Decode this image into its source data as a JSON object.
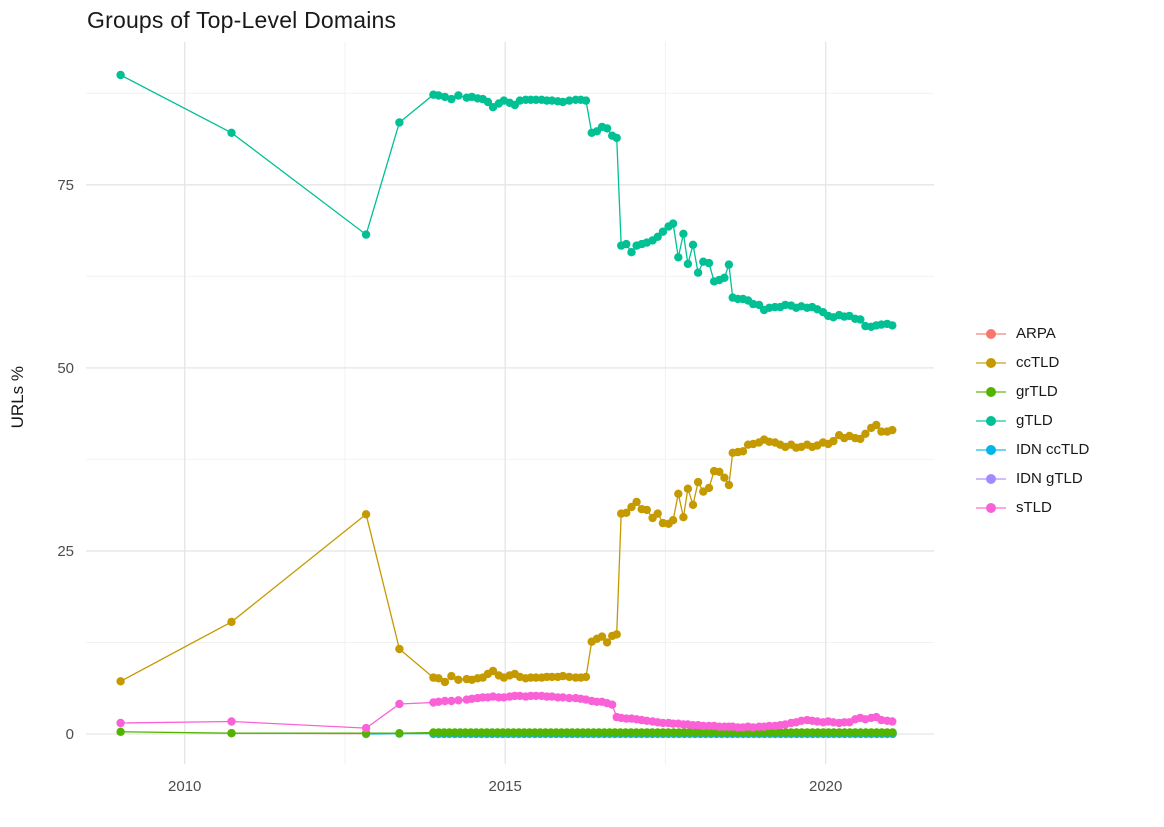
{
  "title": "Groups of Top-Level Domains",
  "colors": {
    "background": "#ffffff",
    "grid_major": "#e5e5e5",
    "grid_minor": "#f2f2f2",
    "tick_text": "#4d4d4d",
    "text": "#191919"
  },
  "chart_data": {
    "type": "line",
    "title": "Groups of Top-Level Domains",
    "xlabel": "",
    "ylabel": "URLs %",
    "xlim": [
      2008.46,
      2021.69
    ],
    "ylim": [
      -4.1,
      94.5
    ],
    "x_major_ticks": [
      2010,
      2015,
      2020
    ],
    "x_minor_gridlines": [
      2012.5,
      2017.5
    ],
    "y_major_ticks": [
      0,
      25,
      50,
      75
    ],
    "y_minor_gridlines": [
      12.5,
      37.5,
      62.5,
      87.5
    ],
    "grid": "major-and-minor",
    "legend_position": "right",
    "marker": "point-with-line",
    "series": [
      {
        "name": "ARPA",
        "color": "#F8766D",
        "points": [
          [
            2010.73,
            0.1
          ],
          [
            2012.83,
            0.05
          ]
        ]
      },
      {
        "name": "ccTLD",
        "color": "#C49A00",
        "points": [
          [
            2009.0,
            7.2
          ],
          [
            2010.73,
            15.3
          ],
          [
            2012.83,
            30.0
          ],
          [
            2013.35,
            11.6
          ],
          [
            2013.88,
            7.7
          ],
          [
            2013.96,
            7.6
          ],
          [
            2014.06,
            7.1
          ],
          [
            2014.16,
            7.9
          ],
          [
            2014.27,
            7.4
          ],
          [
            2014.4,
            7.5
          ],
          [
            2014.48,
            7.4
          ],
          [
            2014.57,
            7.6
          ],
          [
            2014.65,
            7.7
          ],
          [
            2014.73,
            8.2
          ],
          [
            2014.81,
            8.6
          ],
          [
            2014.9,
            8.0
          ],
          [
            2014.98,
            7.7
          ],
          [
            2015.07,
            8.0
          ],
          [
            2015.15,
            8.2
          ],
          [
            2015.23,
            7.8
          ],
          [
            2015.32,
            7.6
          ],
          [
            2015.4,
            7.7
          ],
          [
            2015.48,
            7.7
          ],
          [
            2015.57,
            7.7
          ],
          [
            2015.65,
            7.8
          ],
          [
            2015.73,
            7.8
          ],
          [
            2015.82,
            7.8
          ],
          [
            2015.9,
            7.9
          ],
          [
            2016.0,
            7.8
          ],
          [
            2016.1,
            7.7
          ],
          [
            2016.18,
            7.7
          ],
          [
            2016.26,
            7.8
          ],
          [
            2016.35,
            12.6
          ],
          [
            2016.43,
            13.0
          ],
          [
            2016.51,
            13.3
          ],
          [
            2016.59,
            12.5
          ],
          [
            2016.67,
            13.4
          ],
          [
            2016.74,
            13.6
          ],
          [
            2016.81,
            30.1
          ],
          [
            2016.89,
            30.2
          ],
          [
            2016.97,
            31.0
          ],
          [
            2017.05,
            31.7
          ],
          [
            2017.13,
            30.7
          ],
          [
            2017.21,
            30.6
          ],
          [
            2017.3,
            29.5
          ],
          [
            2017.38,
            30.1
          ],
          [
            2017.46,
            28.8
          ],
          [
            2017.55,
            28.7
          ],
          [
            2017.62,
            29.2
          ],
          [
            2017.7,
            32.8
          ],
          [
            2017.78,
            29.6
          ],
          [
            2017.85,
            33.5
          ],
          [
            2017.93,
            31.3
          ],
          [
            2018.01,
            34.4
          ],
          [
            2018.09,
            33.1
          ],
          [
            2018.18,
            33.6
          ],
          [
            2018.26,
            35.9
          ],
          [
            2018.34,
            35.8
          ],
          [
            2018.42,
            35.0
          ],
          [
            2018.49,
            34.0
          ],
          [
            2018.55,
            38.4
          ],
          [
            2018.63,
            38.5
          ],
          [
            2018.71,
            38.6
          ],
          [
            2018.79,
            39.5
          ],
          [
            2018.87,
            39.6
          ],
          [
            2018.96,
            39.8
          ],
          [
            2019.04,
            40.2
          ],
          [
            2019.12,
            39.9
          ],
          [
            2019.21,
            39.8
          ],
          [
            2019.29,
            39.5
          ],
          [
            2019.37,
            39.2
          ],
          [
            2019.46,
            39.5
          ],
          [
            2019.54,
            39.1
          ],
          [
            2019.62,
            39.2
          ],
          [
            2019.71,
            39.5
          ],
          [
            2019.79,
            39.2
          ],
          [
            2019.87,
            39.4
          ],
          [
            2019.96,
            39.8
          ],
          [
            2020.04,
            39.6
          ],
          [
            2020.12,
            40.0
          ],
          [
            2020.21,
            40.8
          ],
          [
            2020.29,
            40.4
          ],
          [
            2020.37,
            40.7
          ],
          [
            2020.46,
            40.4
          ],
          [
            2020.54,
            40.3
          ],
          [
            2020.62,
            41.0
          ],
          [
            2020.71,
            41.8
          ],
          [
            2020.79,
            42.2
          ],
          [
            2020.87,
            41.3
          ],
          [
            2020.96,
            41.3
          ],
          [
            2021.04,
            41.5
          ]
        ]
      },
      {
        "name": "grTLD",
        "color": "#53B400",
        "points": [
          [
            2009.0,
            0.3
          ],
          [
            2010.73,
            0.1
          ],
          [
            2012.83,
            0.1
          ],
          [
            2013.35,
            0.1
          ]
        ],
        "run": {
          "from": 2013.88,
          "to": 2021.05,
          "step": 0.0833,
          "value": 0.2
        }
      },
      {
        "name": "gTLD",
        "color": "#00C094",
        "points": [
          [
            2009.0,
            90.0
          ],
          [
            2010.73,
            82.1
          ],
          [
            2012.83,
            68.2
          ],
          [
            2013.35,
            83.5
          ],
          [
            2013.88,
            87.3
          ],
          [
            2013.96,
            87.2
          ],
          [
            2014.06,
            87.0
          ],
          [
            2014.16,
            86.7
          ],
          [
            2014.27,
            87.2
          ],
          [
            2014.4,
            86.9
          ],
          [
            2014.48,
            87.0
          ],
          [
            2014.57,
            86.8
          ],
          [
            2014.65,
            86.7
          ],
          [
            2014.73,
            86.3
          ],
          [
            2014.81,
            85.6
          ],
          [
            2014.9,
            86.1
          ],
          [
            2014.98,
            86.5
          ],
          [
            2015.07,
            86.2
          ],
          [
            2015.15,
            85.9
          ],
          [
            2015.23,
            86.5
          ],
          [
            2015.32,
            86.6
          ],
          [
            2015.4,
            86.6
          ],
          [
            2015.48,
            86.6
          ],
          [
            2015.57,
            86.6
          ],
          [
            2015.65,
            86.5
          ],
          [
            2015.73,
            86.5
          ],
          [
            2015.82,
            86.4
          ],
          [
            2015.9,
            86.3
          ],
          [
            2016.0,
            86.5
          ],
          [
            2016.1,
            86.6
          ],
          [
            2016.18,
            86.6
          ],
          [
            2016.26,
            86.5
          ],
          [
            2016.35,
            82.1
          ],
          [
            2016.43,
            82.3
          ],
          [
            2016.51,
            82.9
          ],
          [
            2016.59,
            82.7
          ],
          [
            2016.67,
            81.7
          ],
          [
            2016.74,
            81.4
          ],
          [
            2016.81,
            66.7
          ],
          [
            2016.89,
            66.9
          ],
          [
            2016.97,
            65.8
          ],
          [
            2017.05,
            66.7
          ],
          [
            2017.13,
            66.9
          ],
          [
            2017.21,
            67.1
          ],
          [
            2017.3,
            67.4
          ],
          [
            2017.38,
            67.9
          ],
          [
            2017.46,
            68.6
          ],
          [
            2017.55,
            69.3
          ],
          [
            2017.62,
            69.7
          ],
          [
            2017.7,
            65.1
          ],
          [
            2017.78,
            68.3
          ],
          [
            2017.85,
            64.2
          ],
          [
            2017.93,
            66.8
          ],
          [
            2018.01,
            63.0
          ],
          [
            2018.09,
            64.5
          ],
          [
            2018.18,
            64.3
          ],
          [
            2018.26,
            61.8
          ],
          [
            2018.34,
            62.0
          ],
          [
            2018.42,
            62.3
          ],
          [
            2018.49,
            64.1
          ],
          [
            2018.55,
            59.6
          ],
          [
            2018.63,
            59.4
          ],
          [
            2018.71,
            59.4
          ],
          [
            2018.79,
            59.2
          ],
          [
            2018.87,
            58.7
          ],
          [
            2018.96,
            58.6
          ],
          [
            2019.04,
            57.9
          ],
          [
            2019.12,
            58.2
          ],
          [
            2019.21,
            58.3
          ],
          [
            2019.29,
            58.3
          ],
          [
            2019.37,
            58.6
          ],
          [
            2019.46,
            58.5
          ],
          [
            2019.54,
            58.2
          ],
          [
            2019.62,
            58.4
          ],
          [
            2019.71,
            58.2
          ],
          [
            2019.79,
            58.3
          ],
          [
            2019.87,
            58.0
          ],
          [
            2019.96,
            57.6
          ],
          [
            2020.04,
            57.1
          ],
          [
            2020.12,
            56.9
          ],
          [
            2020.21,
            57.2
          ],
          [
            2020.29,
            57.0
          ],
          [
            2020.37,
            57.1
          ],
          [
            2020.46,
            56.7
          ],
          [
            2020.54,
            56.6
          ],
          [
            2020.62,
            55.7
          ],
          [
            2020.71,
            55.6
          ],
          [
            2020.79,
            55.8
          ],
          [
            2020.87,
            55.9
          ],
          [
            2020.96,
            56.0
          ],
          [
            2021.04,
            55.8
          ]
        ]
      },
      {
        "name": "IDN ccTLD",
        "color": "#00B6EB",
        "points": [
          [
            2012.83,
            0.0
          ],
          [
            2013.35,
            0.05
          ]
        ],
        "run": {
          "from": 2013.88,
          "to": 2021.05,
          "step": 0.0833,
          "value": 0.05
        }
      },
      {
        "name": "IDN gTLD",
        "color": "#A58AFF",
        "run": {
          "from": 2013.88,
          "to": 2021.05,
          "step": 0.0833,
          "value": 0.0
        }
      },
      {
        "name": "sTLD",
        "color": "#FB61D7",
        "points": [
          [
            2009.0,
            1.5
          ],
          [
            2010.73,
            1.7
          ],
          [
            2012.83,
            0.8
          ],
          [
            2013.35,
            4.1
          ],
          [
            2013.88,
            4.3
          ],
          [
            2013.96,
            4.4
          ],
          [
            2014.06,
            4.5
          ],
          [
            2014.16,
            4.5
          ],
          [
            2014.27,
            4.6
          ],
          [
            2014.4,
            4.7
          ],
          [
            2014.48,
            4.8
          ],
          [
            2014.57,
            4.9
          ],
          [
            2014.65,
            5.0
          ],
          [
            2014.73,
            5.0
          ],
          [
            2014.81,
            5.1
          ],
          [
            2014.9,
            5.0
          ],
          [
            2014.98,
            5.0
          ],
          [
            2015.07,
            5.1
          ],
          [
            2015.15,
            5.2
          ],
          [
            2015.23,
            5.2
          ],
          [
            2015.32,
            5.1
          ],
          [
            2015.4,
            5.2
          ],
          [
            2015.48,
            5.2
          ],
          [
            2015.57,
            5.2
          ],
          [
            2015.65,
            5.1
          ],
          [
            2015.73,
            5.1
          ],
          [
            2015.82,
            5.0
          ],
          [
            2015.9,
            5.0
          ],
          [
            2016.0,
            4.9
          ],
          [
            2016.1,
            4.9
          ],
          [
            2016.18,
            4.8
          ],
          [
            2016.26,
            4.7
          ],
          [
            2016.35,
            4.5
          ],
          [
            2016.43,
            4.4
          ],
          [
            2016.51,
            4.4
          ],
          [
            2016.59,
            4.2
          ],
          [
            2016.67,
            4.0
          ],
          [
            2016.74,
            2.3
          ],
          [
            2016.81,
            2.2
          ],
          [
            2016.89,
            2.1
          ],
          [
            2016.97,
            2.1
          ],
          [
            2017.05,
            2.0
          ],
          [
            2017.13,
            1.9
          ],
          [
            2017.21,
            1.8
          ],
          [
            2017.3,
            1.7
          ],
          [
            2017.38,
            1.6
          ],
          [
            2017.46,
            1.5
          ],
          [
            2017.55,
            1.5
          ],
          [
            2017.62,
            1.4
          ],
          [
            2017.7,
            1.4
          ],
          [
            2017.78,
            1.3
          ],
          [
            2017.85,
            1.3
          ],
          [
            2017.93,
            1.2
          ],
          [
            2018.01,
            1.2
          ],
          [
            2018.09,
            1.1
          ],
          [
            2018.18,
            1.1
          ],
          [
            2018.26,
            1.1
          ],
          [
            2018.34,
            1.0
          ],
          [
            2018.42,
            1.0
          ],
          [
            2018.49,
            1.0
          ],
          [
            2018.55,
            1.0
          ],
          [
            2018.63,
            0.9
          ],
          [
            2018.71,
            0.9
          ],
          [
            2018.79,
            1.0
          ],
          [
            2018.87,
            0.9
          ],
          [
            2018.96,
            1.0
          ],
          [
            2019.04,
            1.0
          ],
          [
            2019.12,
            1.1
          ],
          [
            2019.21,
            1.1
          ],
          [
            2019.29,
            1.2
          ],
          [
            2019.37,
            1.3
          ],
          [
            2019.46,
            1.5
          ],
          [
            2019.54,
            1.6
          ],
          [
            2019.62,
            1.8
          ],
          [
            2019.71,
            1.9
          ],
          [
            2019.79,
            1.8
          ],
          [
            2019.87,
            1.7
          ],
          [
            2019.96,
            1.6
          ],
          [
            2020.04,
            1.7
          ],
          [
            2020.12,
            1.6
          ],
          [
            2020.21,
            1.5
          ],
          [
            2020.29,
            1.6
          ],
          [
            2020.37,
            1.6
          ],
          [
            2020.46,
            2.0
          ],
          [
            2020.54,
            2.2
          ],
          [
            2020.62,
            2.0
          ],
          [
            2020.71,
            2.2
          ],
          [
            2020.79,
            2.3
          ],
          [
            2020.87,
            1.9
          ],
          [
            2020.96,
            1.8
          ],
          [
            2021.04,
            1.7
          ]
        ]
      }
    ]
  }
}
